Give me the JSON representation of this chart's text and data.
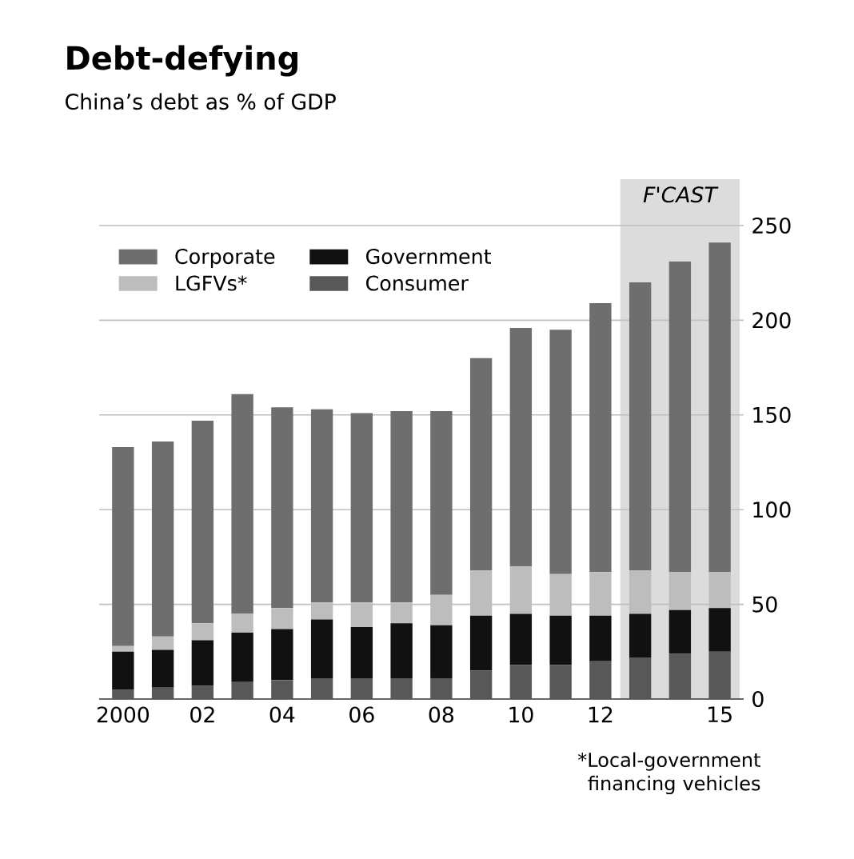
{
  "chart_data": {
    "type": "bar",
    "stacked": true,
    "title": "Debt-defying",
    "subtitle": "China’s debt as % of GDP",
    "x": [
      2000,
      2001,
      2002,
      2003,
      2004,
      2005,
      2006,
      2007,
      2008,
      2009,
      2010,
      2011,
      2012,
      2013,
      2014,
      2015
    ],
    "series": [
      {
        "name": "Consumer",
        "color": "#585858",
        "values": [
          5,
          6,
          7,
          9,
          10,
          11,
          11,
          11,
          11,
          15,
          18,
          18,
          20,
          22,
          24,
          25
        ]
      },
      {
        "name": "Government",
        "color": "#111111",
        "values": [
          20,
          20,
          24,
          26,
          27,
          31,
          27,
          29,
          28,
          29,
          27,
          26,
          24,
          23,
          23,
          23
        ]
      },
      {
        "name": "LGFVs*",
        "color": "#bdbdbd",
        "values": [
          3,
          7,
          9,
          10,
          11,
          9,
          13,
          11,
          16,
          24,
          25,
          22,
          23,
          23,
          20,
          19
        ]
      },
      {
        "name": "Corporate",
        "color": "#6e6e6e",
        "values": [
          105,
          103,
          107,
          116,
          106,
          102,
          100,
          101,
          97,
          112,
          126,
          129,
          142,
          152,
          164,
          174
        ]
      }
    ],
    "xlim": [
      1999.4,
      2015.6
    ],
    "xticks": [
      {
        "value": 2000,
        "label": "2000"
      },
      {
        "value": 2002,
        "label": "02"
      },
      {
        "value": 2004,
        "label": "04"
      },
      {
        "value": 2006,
        "label": "06"
      },
      {
        "value": 2008,
        "label": "08"
      },
      {
        "value": 2010,
        "label": "10"
      },
      {
        "value": 2012,
        "label": "12"
      },
      {
        "value": 2015,
        "label": "15"
      }
    ],
    "ylim": [
      0,
      250
    ],
    "yticks": [
      0,
      50,
      100,
      150,
      200,
      250
    ],
    "grid": "y",
    "legend": "top left",
    "bands": [
      {
        "axis": "x",
        "from": 2012.5,
        "to": 2015.5,
        "label": "F'CAST",
        "color": "#dcdcdc"
      }
    ],
    "annotations": [
      "*Local-government financing vehicles"
    ]
  }
}
